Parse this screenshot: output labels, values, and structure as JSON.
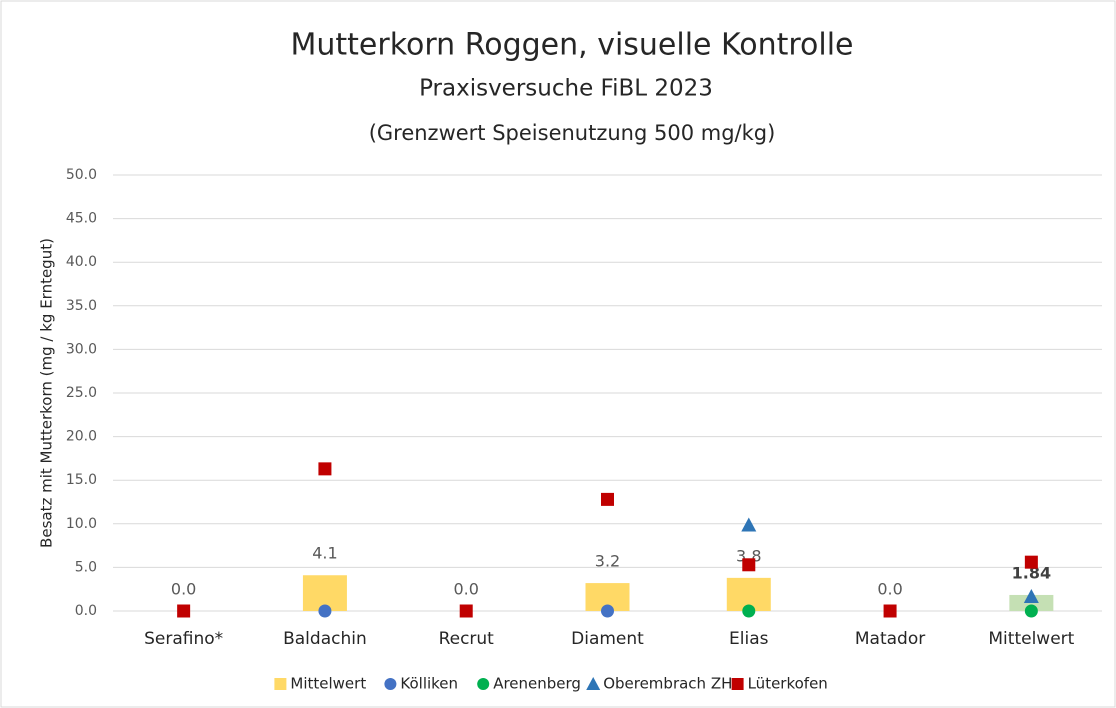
{
  "chart_data": {
    "type": "bar",
    "title": "Mutterkorn Roggen, visuelle Kontrolle",
    "subtitle": "Praxisversuche FiBL 2023",
    "note": "(Grenzwert Speisenutzung 500 mg/kg)",
    "y_label": "Besatz mit Mutterkorn (mg / kg Erntegut)",
    "categories": [
      "Serafino*",
      "Baldachin",
      "Recrut",
      "Diament",
      "Elias",
      "Matador",
      "Mittelwert"
    ],
    "series": [
      {
        "name": "Mittelwert",
        "type": "bar",
        "marker": "square",
        "color": "#ffd966",
        "colors": [
          "#ffd966",
          "#ffd966",
          "#ffd966",
          "#ffd966",
          "#ffd966",
          "#ffd966",
          "#c5e0b4"
        ],
        "values": [
          0,
          4.1,
          0,
          3.2,
          3.8,
          0,
          1.84
        ],
        "value_labels": [
          "0.0",
          "4.1",
          "0.0",
          "3.2",
          "3.8",
          "0.0",
          "1.84"
        ]
      },
      {
        "name": "Kölliken",
        "type": "scatter",
        "marker": "circle",
        "color": "#4472c4",
        "values": [
          null,
          0,
          null,
          0,
          null,
          null,
          null
        ]
      },
      {
        "name": "Arenenberg",
        "type": "scatter",
        "marker": "circle",
        "color": "#00b050",
        "values": [
          null,
          null,
          null,
          null,
          0,
          null,
          0
        ]
      },
      {
        "name": "Oberembrach ZH",
        "type": "scatter",
        "marker": "triangle",
        "color": "#2e75b6",
        "values": [
          null,
          null,
          null,
          null,
          9.8,
          null,
          1.6
        ]
      },
      {
        "name": "Lüterkofen",
        "type": "scatter",
        "marker": "square",
        "color": "#c00000",
        "values": [
          0,
          16.3,
          0,
          12.8,
          5.3,
          0,
          5.6
        ]
      }
    ],
    "ylim": [
      0,
      50
    ],
    "yticks": [
      {
        "value": 0,
        "label": "0.0"
      },
      {
        "value": 5,
        "label": "5.0"
      },
      {
        "value": 10,
        "label": "10.0"
      },
      {
        "value": 15,
        "label": "15.0"
      },
      {
        "value": 20,
        "label": "20.0"
      },
      {
        "value": 25,
        "label": "25.0"
      },
      {
        "value": 30,
        "label": "30.0"
      },
      {
        "value": 35,
        "label": "35.0"
      },
      {
        "value": 40,
        "label": "40.0"
      },
      {
        "value": 45,
        "label": "45.0"
      },
      {
        "value": 50,
        "label": "50.0"
      }
    ],
    "grid": true,
    "legend": "bottom"
  }
}
